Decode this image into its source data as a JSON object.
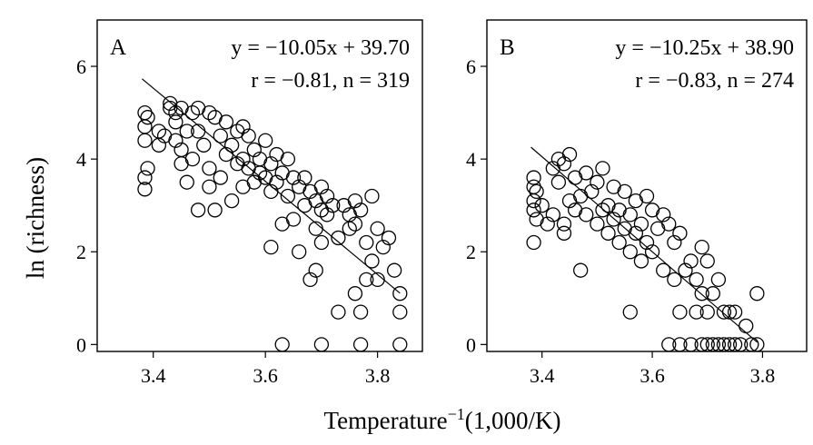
{
  "figure": {
    "ylabel": "ln (richness)",
    "xlabel_main": "Temperature",
    "xlabel_sup": "−1",
    "xlabel_unit": "(1,000/K)"
  },
  "chart_data": [
    {
      "type": "scatter",
      "panel": "A",
      "equation": "y = −10.05x + 39.70",
      "stats": "r = −0.81, n = 319",
      "fit": {
        "slope": -10.05,
        "intercept": 39.7
      },
      "xlim": [
        3.3,
        3.88
      ],
      "ylim": [
        -0.15,
        7.0
      ],
      "xticks": [
        "3.4",
        "3.6",
        "3.8"
      ],
      "yticks": [
        "0",
        "2",
        "4",
        "6"
      ],
      "grid": false,
      "points": [
        [
          3.385,
          5.0
        ],
        [
          3.385,
          4.7
        ],
        [
          3.385,
          4.4
        ],
        [
          3.385,
          3.6
        ],
        [
          3.385,
          3.35
        ],
        [
          3.39,
          4.9
        ],
        [
          3.39,
          3.8
        ],
        [
          3.41,
          4.6
        ],
        [
          3.41,
          4.3
        ],
        [
          3.42,
          4.5
        ],
        [
          3.43,
          5.1
        ],
        [
          3.43,
          5.2
        ],
        [
          3.44,
          5.0
        ],
        [
          3.44,
          4.8
        ],
        [
          3.44,
          4.4
        ],
        [
          3.45,
          5.1
        ],
        [
          3.45,
          4.2
        ],
        [
          3.45,
          3.9
        ],
        [
          3.46,
          3.5
        ],
        [
          3.46,
          4.6
        ],
        [
          3.47,
          5.0
        ],
        [
          3.47,
          4.0
        ],
        [
          3.48,
          5.1
        ],
        [
          3.48,
          4.6
        ],
        [
          3.48,
          2.9
        ],
        [
          3.49,
          4.3
        ],
        [
          3.5,
          5.0
        ],
        [
          3.5,
          3.8
        ],
        [
          3.5,
          3.4
        ],
        [
          3.51,
          4.9
        ],
        [
          3.51,
          2.9
        ],
        [
          3.52,
          4.5
        ],
        [
          3.52,
          3.6
        ],
        [
          3.53,
          4.8
        ],
        [
          3.53,
          4.1
        ],
        [
          3.54,
          4.3
        ],
        [
          3.54,
          3.1
        ],
        [
          3.55,
          4.6
        ],
        [
          3.55,
          3.9
        ],
        [
          3.56,
          4.7
        ],
        [
          3.56,
          4.0
        ],
        [
          3.56,
          3.4
        ],
        [
          3.57,
          4.5
        ],
        [
          3.57,
          3.8
        ],
        [
          3.58,
          4.2
        ],
        [
          3.58,
          3.5
        ],
        [
          3.59,
          4.0
        ],
        [
          3.59,
          3.7
        ],
        [
          3.6,
          4.4
        ],
        [
          3.6,
          3.6
        ],
        [
          3.61,
          3.9
        ],
        [
          3.61,
          3.3
        ],
        [
          3.61,
          2.1
        ],
        [
          3.62,
          4.1
        ],
        [
          3.62,
          3.5
        ],
        [
          3.63,
          3.7
        ],
        [
          3.63,
          2.6
        ],
        [
          3.63,
          0.0
        ],
        [
          3.64,
          4.0
        ],
        [
          3.64,
          3.2
        ],
        [
          3.65,
          3.6
        ],
        [
          3.65,
          2.7
        ],
        [
          3.66,
          3.4
        ],
        [
          3.66,
          2.0
        ],
        [
          3.67,
          3.6
        ],
        [
          3.67,
          3.0
        ],
        [
          3.68,
          3.3
        ],
        [
          3.68,
          1.4
        ],
        [
          3.69,
          3.1
        ],
        [
          3.69,
          2.5
        ],
        [
          3.69,
          1.6
        ],
        [
          3.7,
          3.4
        ],
        [
          3.7,
          2.9
        ],
        [
          3.7,
          2.2
        ],
        [
          3.7,
          0.0
        ],
        [
          3.71,
          3.2
        ],
        [
          3.71,
          2.8
        ],
        [
          3.72,
          3.0
        ],
        [
          3.73,
          2.3
        ],
        [
          3.73,
          0.7
        ],
        [
          3.74,
          3.0
        ],
        [
          3.75,
          2.8
        ],
        [
          3.75,
          2.5
        ],
        [
          3.76,
          3.1
        ],
        [
          3.76,
          2.6
        ],
        [
          3.76,
          1.1
        ],
        [
          3.77,
          2.9
        ],
        [
          3.77,
          0.7
        ],
        [
          3.77,
          0.0
        ],
        [
          3.78,
          1.4
        ],
        [
          3.78,
          2.2
        ],
        [
          3.79,
          3.2
        ],
        [
          3.79,
          1.8
        ],
        [
          3.8,
          2.5
        ],
        [
          3.8,
          1.4
        ],
        [
          3.81,
          2.1
        ],
        [
          3.82,
          2.3
        ],
        [
          3.83,
          1.6
        ],
        [
          3.84,
          1.1
        ],
        [
          3.84,
          0.7
        ],
        [
          3.84,
          0.0
        ]
      ]
    },
    {
      "type": "scatter",
      "panel": "B",
      "equation": "y = −10.25x + 38.90",
      "stats": "r = −0.83, n = 274",
      "fit": {
        "slope": -10.25,
        "intercept": 38.9
      },
      "xlim": [
        3.3,
        3.88
      ],
      "ylim": [
        -0.15,
        7.0
      ],
      "xticks": [
        "3.4",
        "3.6",
        "3.8"
      ],
      "yticks": [
        "0",
        "2",
        "4",
        "6"
      ],
      "grid": false,
      "points": [
        [
          3.385,
          3.6
        ],
        [
          3.385,
          3.4
        ],
        [
          3.385,
          3.1
        ],
        [
          3.385,
          2.9
        ],
        [
          3.385,
          2.2
        ],
        [
          3.39,
          3.3
        ],
        [
          3.39,
          2.7
        ],
        [
          3.4,
          3.0
        ],
        [
          3.41,
          2.6
        ],
        [
          3.42,
          2.8
        ],
        [
          3.42,
          3.8
        ],
        [
          3.43,
          4.0
        ],
        [
          3.43,
          3.5
        ],
        [
          3.44,
          3.9
        ],
        [
          3.44,
          2.6
        ],
        [
          3.44,
          2.4
        ],
        [
          3.45,
          4.1
        ],
        [
          3.45,
          3.1
        ],
        [
          3.46,
          3.6
        ],
        [
          3.46,
          2.9
        ],
        [
          3.47,
          3.2
        ],
        [
          3.47,
          1.6
        ],
        [
          3.48,
          3.7
        ],
        [
          3.48,
          2.8
        ],
        [
          3.49,
          3.3
        ],
        [
          3.5,
          3.5
        ],
        [
          3.5,
          2.6
        ],
        [
          3.51,
          3.8
        ],
        [
          3.51,
          2.9
        ],
        [
          3.52,
          3.0
        ],
        [
          3.52,
          2.4
        ],
        [
          3.53,
          3.4
        ],
        [
          3.53,
          2.7
        ],
        [
          3.54,
          2.9
        ],
        [
          3.54,
          2.2
        ],
        [
          3.55,
          3.3
        ],
        [
          3.55,
          2.5
        ],
        [
          3.56,
          2.8
        ],
        [
          3.56,
          2.0
        ],
        [
          3.56,
          0.7
        ],
        [
          3.57,
          3.1
        ],
        [
          3.57,
          2.4
        ],
        [
          3.58,
          2.6
        ],
        [
          3.58,
          1.8
        ],
        [
          3.59,
          3.2
        ],
        [
          3.59,
          2.2
        ],
        [
          3.6,
          2.9
        ],
        [
          3.6,
          2.0
        ],
        [
          3.61,
          2.5
        ],
        [
          3.62,
          2.8
        ],
        [
          3.62,
          1.6
        ],
        [
          3.63,
          2.6
        ],
        [
          3.63,
          0.0
        ],
        [
          3.64,
          2.2
        ],
        [
          3.64,
          1.4
        ],
        [
          3.65,
          2.4
        ],
        [
          3.65,
          0.7
        ],
        [
          3.65,
          0.0
        ],
        [
          3.66,
          1.6
        ],
        [
          3.67,
          1.8
        ],
        [
          3.67,
          0.0
        ],
        [
          3.68,
          1.4
        ],
        [
          3.68,
          0.7
        ],
        [
          3.69,
          2.1
        ],
        [
          3.69,
          1.1
        ],
        [
          3.69,
          0.0
        ],
        [
          3.7,
          1.8
        ],
        [
          3.7,
          0.7
        ],
        [
          3.7,
          0.0
        ],
        [
          3.71,
          1.1
        ],
        [
          3.71,
          0.0
        ],
        [
          3.72,
          1.4
        ],
        [
          3.72,
          0.0
        ],
        [
          3.73,
          0.7
        ],
        [
          3.73,
          0.0
        ],
        [
          3.74,
          0.7
        ],
        [
          3.74,
          0.0
        ],
        [
          3.75,
          0.7
        ],
        [
          3.75,
          0.0
        ],
        [
          3.76,
          0.0
        ],
        [
          3.77,
          0.4
        ],
        [
          3.78,
          0.0
        ],
        [
          3.79,
          1.1
        ],
        [
          3.79,
          0.0
        ]
      ]
    }
  ]
}
